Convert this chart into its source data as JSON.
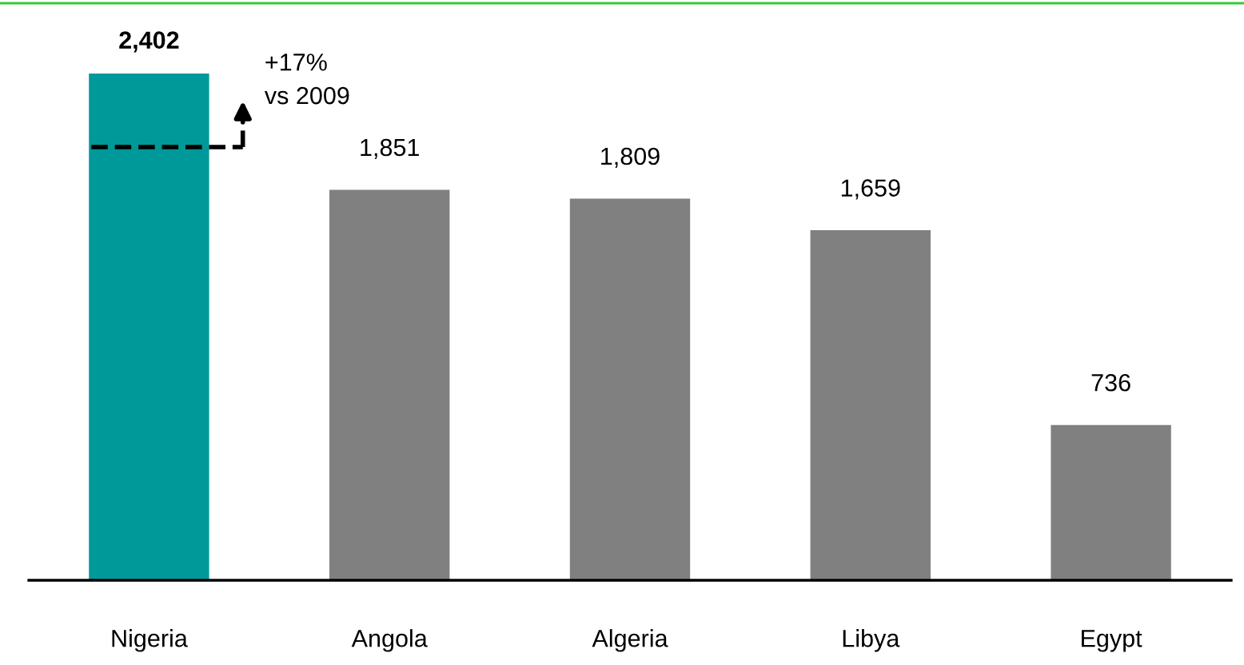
{
  "chart_data": {
    "type": "bar",
    "categories": [
      "Nigeria",
      "Angola",
      "Algeria",
      "Libya",
      "Egypt"
    ],
    "values": [
      2402,
      1851,
      1809,
      1659,
      736
    ],
    "colors": [
      "#009999",
      "#808080",
      "#808080",
      "#808080",
      "#808080"
    ],
    "value_labels": [
      "2,402",
      "1,851",
      "1,809",
      "1,659",
      "736"
    ],
    "annotations": [
      "+17%\nvs 2009"
    ],
    "grid": false
  }
}
